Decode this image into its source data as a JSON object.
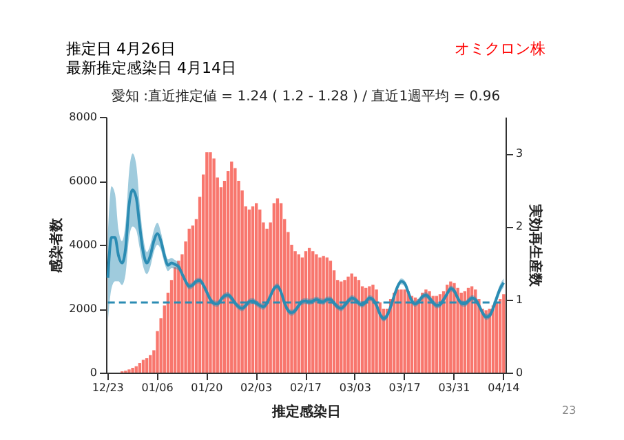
{
  "chart_data": {
    "type": "bar",
    "title": "愛知 :直近推定値 = 1.24 ( 1.2 - 1.28 ) / 直近1週平均 = 0.96",
    "xlabel": "推定感染日",
    "ylabel": "感染者数",
    "y2label": "実効再生産数",
    "annotations": [
      "推定日  4月26日",
      "最新推定感染日  4月14日",
      "オミクロン株",
      "23"
    ],
    "categories": [
      "12/23",
      null,
      null,
      null,
      null,
      null,
      null,
      null,
      null,
      null,
      null,
      null,
      null,
      null,
      "01/06",
      null,
      null,
      null,
      null,
      null,
      null,
      null,
      null,
      null,
      null,
      null,
      null,
      null,
      "01/20",
      null,
      null,
      null,
      null,
      null,
      null,
      null,
      null,
      null,
      null,
      null,
      null,
      null,
      "02/03",
      null,
      null,
      null,
      null,
      null,
      null,
      null,
      null,
      null,
      null,
      null,
      null,
      null,
      "02/17",
      null,
      null,
      null,
      null,
      null,
      null,
      null,
      null,
      null,
      null,
      null,
      null,
      null,
      "03/03",
      null,
      null,
      null,
      null,
      null,
      null,
      null,
      null,
      null,
      null,
      null,
      null,
      null,
      "03/17",
      null,
      null,
      null,
      null,
      null,
      null,
      null,
      null,
      null,
      null,
      null,
      null,
      null,
      "03/31",
      null,
      null,
      null,
      null,
      null,
      null,
      null,
      null,
      null,
      null,
      null,
      null,
      null,
      "04/14"
    ],
    "series": [
      {
        "color": "#f8766d",
        "values": [
          null,
          null,
          null,
          null,
          40,
          60,
          100,
          150,
          200,
          300,
          400,
          450,
          550,
          700,
          1300,
          1700,
          2100,
          2500,
          2900,
          3300,
          3500,
          3700,
          4100,
          4500,
          4600,
          4800,
          5500,
          6200,
          6900,
          6900,
          6700,
          6100,
          5800,
          6000,
          6300,
          6600,
          6400,
          6000,
          5700,
          5200,
          5100,
          5200,
          5300,
          5100,
          4700,
          4500,
          4700,
          5300,
          5450,
          5300,
          4800,
          4400,
          4000,
          3800,
          3700,
          3600,
          3800,
          3900,
          3800,
          3700,
          3600,
          3650,
          3600,
          3500,
          3200,
          2900,
          2850,
          2900,
          3000,
          3100,
          3000,
          2900,
          2700,
          2650,
          2700,
          2750,
          2600,
          2200,
          2000,
          2000,
          2300,
          2500,
          2600,
          2600,
          2600,
          2550,
          2400,
          2350,
          2300,
          2500,
          2600,
          2550,
          2400,
          2400,
          2450,
          2550,
          2750,
          2850,
          2800,
          2650,
          2500,
          2550,
          2650,
          2700,
          2600,
          2300,
          2000,
          1950,
          2000,
          2100,
          2200,
          2300,
          2450
        ]
      },
      {
        "type": "line",
        "axis": "y2",
        "color": "#2b8cb3",
        "values": [
          1.3,
          1.85,
          1.85,
          1.6,
          1.5,
          1.7,
          2.3,
          2.5,
          2.4,
          2.0,
          1.65,
          1.5,
          1.6,
          1.8,
          1.9,
          1.8,
          1.6,
          1.47,
          1.5,
          1.48,
          1.45,
          1.35,
          1.25,
          1.18,
          1.2,
          1.25,
          1.26,
          1.2,
          1.1,
          1.0,
          0.95,
          0.94,
          1.0,
          1.05,
          1.06,
          1.02,
          0.95,
          0.9,
          0.88,
          0.92,
          0.97,
          0.98,
          0.95,
          0.92,
          0.9,
          0.95,
          1.05,
          1.15,
          1.18,
          1.1,
          0.95,
          0.85,
          0.82,
          0.85,
          0.92,
          0.97,
          0.98,
          0.97,
          0.98,
          1.0,
          0.98,
          0.97,
          1.0,
          1.0,
          0.95,
          0.9,
          0.88,
          0.92,
          0.98,
          1.02,
          1.0,
          0.95,
          0.93,
          0.97,
          1.02,
          1.0,
          0.92,
          0.8,
          0.74,
          0.78,
          0.9,
          1.05,
          1.18,
          1.25,
          1.22,
          1.1,
          0.98,
          0.94,
          0.98,
          1.04,
          1.06,
          1.02,
          0.96,
          0.92,
          0.93,
          1.0,
          1.08,
          1.15,
          1.12,
          1.02,
          0.95,
          0.94,
          0.98,
          1.02,
          1.0,
          0.92,
          0.82,
          0.76,
          0.78,
          0.88,
          1.02,
          1.15,
          1.23
        ],
        "lower": [
          0.7,
          1.15,
          1.25,
          1.25,
          1.2,
          1.35,
          1.85,
          2.0,
          1.95,
          1.7,
          1.45,
          1.35,
          1.45,
          1.65,
          1.75,
          1.68,
          1.5,
          1.39,
          1.43,
          1.42,
          1.4,
          1.31,
          1.21,
          1.14,
          1.16,
          1.21,
          1.22,
          1.16,
          1.06,
          0.96,
          0.91,
          0.9,
          0.96,
          1.01,
          1.02,
          0.98,
          0.91,
          0.86,
          0.84,
          0.88,
          0.93,
          0.94,
          0.91,
          0.88,
          0.86,
          0.91,
          1.01,
          1.11,
          1.14,
          1.06,
          0.91,
          0.81,
          0.78,
          0.81,
          0.88,
          0.93,
          0.94,
          0.93,
          0.94,
          0.96,
          0.94,
          0.93,
          0.96,
          0.96,
          0.91,
          0.86,
          0.84,
          0.88,
          0.94,
          0.98,
          0.96,
          0.91,
          0.89,
          0.93,
          0.98,
          0.96,
          0.88,
          0.76,
          0.7,
          0.74,
          0.86,
          1.01,
          1.14,
          1.21,
          1.18,
          1.06,
          0.94,
          0.9,
          0.94,
          1.0,
          1.02,
          0.98,
          0.92,
          0.88,
          0.89,
          0.96,
          1.04,
          1.11,
          1.08,
          0.98,
          0.91,
          0.9,
          0.94,
          0.98,
          0.96,
          0.88,
          0.78,
          0.72,
          0.74,
          0.82,
          0.96,
          1.09,
          1.17
        ],
        "upper": [
          1.9,
          2.55,
          2.45,
          1.95,
          1.8,
          2.05,
          2.75,
          3.0,
          2.85,
          2.3,
          1.85,
          1.65,
          1.75,
          1.95,
          2.05,
          1.92,
          1.7,
          1.55,
          1.57,
          1.54,
          1.5,
          1.39,
          1.29,
          1.22,
          1.24,
          1.29,
          1.3,
          1.24,
          1.14,
          1.04,
          0.99,
          0.98,
          1.04,
          1.09,
          1.1,
          1.06,
          0.99,
          0.94,
          0.92,
          0.96,
          1.01,
          1.02,
          0.99,
          0.96,
          0.94,
          0.99,
          1.09,
          1.19,
          1.22,
          1.14,
          0.99,
          0.89,
          0.86,
          0.89,
          0.96,
          1.01,
          1.02,
          1.01,
          1.02,
          1.04,
          1.02,
          1.01,
          1.04,
          1.04,
          0.99,
          0.94,
          0.92,
          0.96,
          1.02,
          1.06,
          1.04,
          0.99,
          0.97,
          1.01,
          1.06,
          1.04,
          0.96,
          0.84,
          0.78,
          0.82,
          0.94,
          1.09,
          1.22,
          1.29,
          1.26,
          1.14,
          1.02,
          0.98,
          1.02,
          1.08,
          1.1,
          1.06,
          1.0,
          0.96,
          0.97,
          1.04,
          1.12,
          1.19,
          1.16,
          1.06,
          0.99,
          0.98,
          1.02,
          1.06,
          1.04,
          0.96,
          0.86,
          0.8,
          0.82,
          0.94,
          1.08,
          1.21,
          1.29
        ]
      }
    ],
    "ylim": [
      0,
      8000
    ],
    "yticks": [
      0,
      2000,
      4000,
      6000,
      8000
    ],
    "y2lim": [
      0,
      3.5
    ],
    "y2ticks": [
      0,
      1,
      2,
      3
    ],
    "ref_lines": [
      {
        "axis": "y2",
        "value": 0.96,
        "label": null,
        "color": "#2b8cb3",
        "line_style": "dashed"
      }
    ]
  }
}
